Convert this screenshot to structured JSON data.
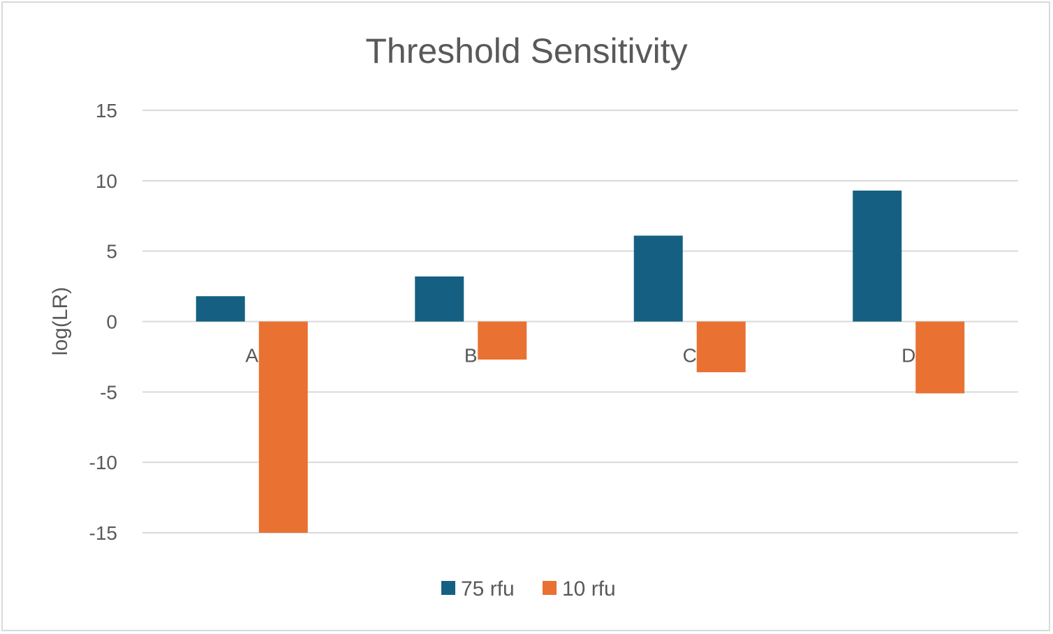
{
  "chart_data": {
    "type": "bar",
    "title": "Threshold Sensitivity",
    "xlabel": "",
    "ylabel": "log(LR)",
    "categories": [
      "A",
      "B",
      "C",
      "D"
    ],
    "ylim": [
      -15,
      15
    ],
    "yticks": [
      15,
      10,
      5,
      0,
      -5,
      -10,
      -15
    ],
    "grid": true,
    "legend_position": "bottom",
    "series": [
      {
        "name": "75 rfu",
        "color": "#156082",
        "values": [
          1.8,
          3.2,
          6.1,
          9.3
        ]
      },
      {
        "name": "10 rfu",
        "color": "#E97132",
        "values": [
          -15.0,
          -2.7,
          -3.6,
          -5.1
        ]
      }
    ]
  }
}
